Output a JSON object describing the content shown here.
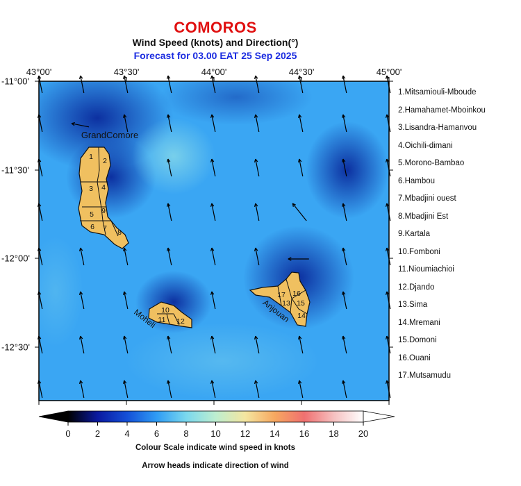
{
  "header": {
    "title": "COMOROS",
    "subtitle": "Wind Speed (knots) and Direction(°)",
    "forecast": "Forecast for  03.00 EAT 25 Sep 2025"
  },
  "axes": {
    "lon_ticks": [
      "43°00'",
      "43°30'",
      "44°00'",
      "44°30'",
      "45°00'"
    ],
    "lat_ticks": [
      "-11°00'",
      "-11°30'",
      "-12°00'",
      "-12°30'"
    ]
  },
  "islands": {
    "grand_comore": "GrandComore",
    "moheli": "Moheli",
    "anjouan": "Anjouan",
    "region_numbers": [
      "1",
      "2",
      "3",
      "4",
      "5",
      "6",
      "7",
      "8",
      "9",
      "10",
      "11",
      "12",
      "13",
      "14",
      "15",
      "16",
      "17"
    ]
  },
  "regions": [
    "1.Mitsamiouli-Mboude",
    "2.Hamahamet-Mboinkou",
    "3.Lisandra-Hamanvou",
    "4.Oichili-dimani",
    "5.Morono-Bambao",
    "6.Hambou",
    "7.Mbadjini ouest",
    "8.Mbadjini Est",
    "9.Kartala",
    "10.Fomboni",
    "11.Nioumiachioi",
    "12.Djando",
    "13.Sima",
    "14.Mremani",
    "15.Domoni",
    "16.Ouani",
    "17.Mutsamudu"
  ],
  "colorbar": {
    "ticks": [
      "0",
      "2",
      "4",
      "6",
      "8",
      "10",
      "12",
      "14",
      "16",
      "18",
      "20"
    ],
    "min": 0,
    "max": 20,
    "unit": "knots"
  },
  "captions": {
    "scale_note": "Colour Scale indicate wind speed in knots",
    "arrow_note": "Arrow heads indicate direction of wind"
  },
  "colors": {
    "title": "#e01010",
    "forecast": "#1a2be0",
    "land": "#f0c060",
    "arrow": "#000000"
  }
}
